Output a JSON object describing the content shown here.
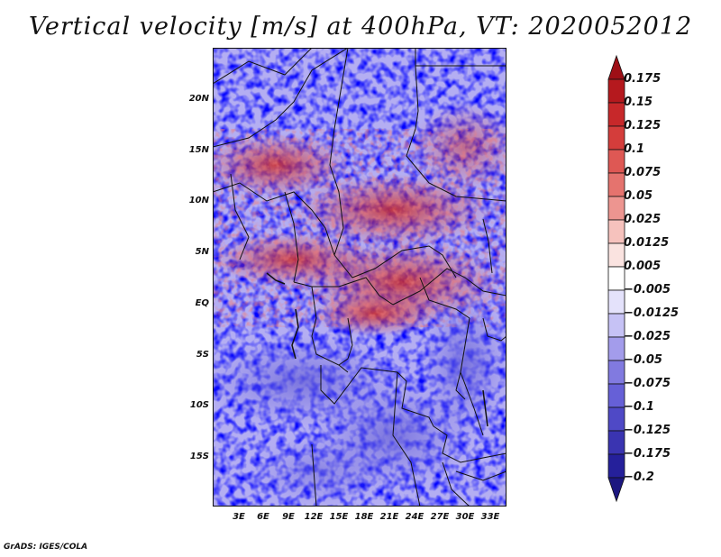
{
  "title": "Vertical velocity [m/s] at 400hPa, VT: 2020052012",
  "credit": "GrADS: IGES/COLA",
  "map": {
    "region": "Central Africa",
    "variable": "Vertical velocity",
    "units": "m/s",
    "level": "400hPa",
    "valid_time": "2020052012",
    "y_ticks": [
      "20N",
      "15N",
      "10N",
      "5N",
      "EQ",
      "5S",
      "10S",
      "15S"
    ],
    "x_ticks": [
      "3E",
      "6E",
      "9E",
      "12E",
      "15E",
      "18E",
      "21E",
      "24E",
      "27E",
      "30E",
      "33E"
    ]
  },
  "colorbar": {
    "labels": [
      "0.175",
      "0.15",
      "0.125",
      "0.1",
      "0.075",
      "0.05",
      "0.025",
      "0.0125",
      "0.005",
      "−0.005",
      "−0.0125",
      "−0.025",
      "−0.05",
      "−0.075",
      "−0.1",
      "−0.125",
      "−0.175",
      "−0.2"
    ],
    "colors": [
      "#9e0f16",
      "#b5191e",
      "#c7282a",
      "#d43d3b",
      "#de5854",
      "#e5736e",
      "#ed9590",
      "#f6c2bd",
      "#fae3e0",
      "#ffffff",
      "#e4e2fb",
      "#c6c2f5",
      "#a39ceb",
      "#817ae0",
      "#6660d7",
      "#4f49c6",
      "#3a34b1",
      "#25209b",
      "#1c1780"
    ]
  }
}
